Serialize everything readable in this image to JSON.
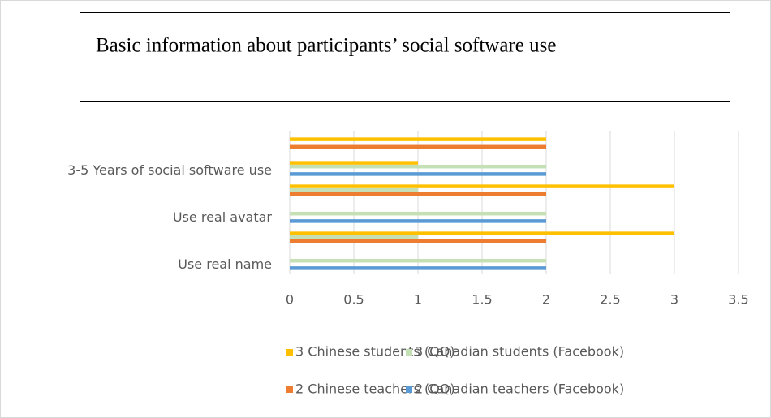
{
  "chart_data": {
    "type": "hbar",
    "title": "Basic information about participants’ social software use",
    "categories": [
      "Use real name",
      null,
      "Use real avatar",
      null,
      "3-5 Years of social software use",
      null
    ],
    "series": [
      {
        "name": "3 Chinese students (QQ)",
        "color": "#ffc000",
        "values": [
          0,
          3,
          0,
          3,
          1,
          2
        ]
      },
      {
        "name": "3 Canadian students (Facebook)",
        "color": "#c5e0b4",
        "values": [
          2,
          1,
          2,
          1,
          2,
          0
        ]
      },
      {
        "name": "2 Chinese teachers (QQ)",
        "color": "#ed7d31",
        "values": [
          0,
          2,
          0,
          2,
          0,
          2
        ]
      },
      {
        "name": "2 Canadian teachers (Facebook)",
        "color": "#5b9bd5",
        "values": [
          2,
          0,
          2,
          0,
          2,
          0
        ]
      }
    ],
    "xlim": [
      0,
      3.5
    ],
    "xticks": [
      0,
      0.5,
      1,
      1.5,
      2,
      2.5,
      3,
      3.5
    ],
    "grid": true
  }
}
